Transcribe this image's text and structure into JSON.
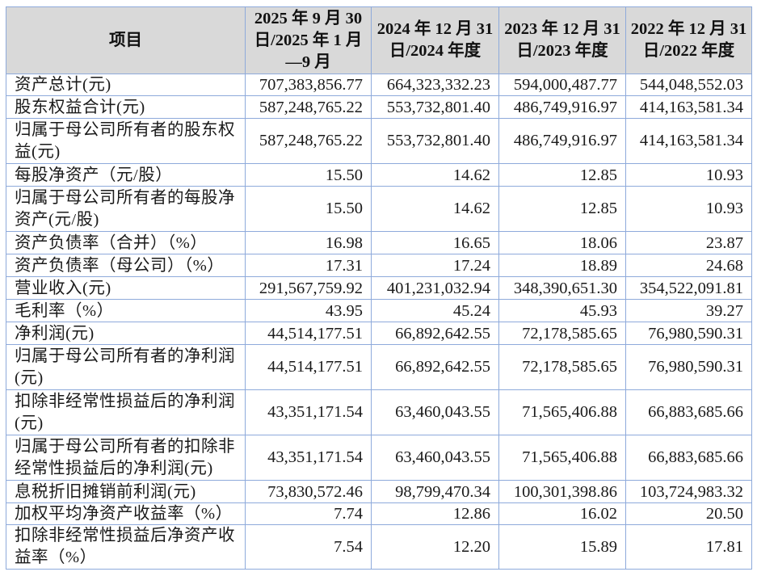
{
  "table": {
    "headers": [
      "项目",
      "2025 年 9 月 30 日/2025 年 1 月—9 月",
      "2024 年 12 月 31 日/2024 年度",
      "2023 年 12 月 31 日/2023 年度",
      "2022 年 12 月 31 日/2022 年度"
    ],
    "rows": [
      {
        "label": "资产总计(元)",
        "lines": 1,
        "values": [
          "707,383,856.77",
          "664,323,332.23",
          "594,000,487.77",
          "544,048,552.03"
        ]
      },
      {
        "label": "股东权益合计(元)",
        "lines": 1,
        "values": [
          "587,248,765.22",
          "553,732,801.40",
          "486,749,916.97",
          "414,163,581.34"
        ]
      },
      {
        "label": "归属于母公司所有者的股东权益(元)",
        "lines": 2,
        "values": [
          "587,248,765.22",
          "553,732,801.40",
          "486,749,916.97",
          "414,163,581.34"
        ]
      },
      {
        "label": "每股净资产（元/股）",
        "lines": 1,
        "values": [
          "15.50",
          "14.62",
          "12.85",
          "10.93"
        ]
      },
      {
        "label": "归属于母公司所有者的每股净资产(元/股)",
        "lines": 2,
        "values": [
          "15.50",
          "14.62",
          "12.85",
          "10.93"
        ]
      },
      {
        "label": "资产负债率（合并）（%）",
        "lines": 1,
        "values": [
          "16.98",
          "16.65",
          "18.06",
          "23.87"
        ]
      },
      {
        "label": "资产负债率（母公司）（%）",
        "lines": 1,
        "values": [
          "17.31",
          "17.24",
          "18.89",
          "24.68"
        ]
      },
      {
        "label": "营业收入(元)",
        "lines": 1,
        "values": [
          "291,567,759.92",
          "401,231,032.94",
          "348,390,651.30",
          "354,522,091.81"
        ]
      },
      {
        "label": "毛利率（%）",
        "lines": 1,
        "values": [
          "43.95",
          "45.24",
          "45.93",
          "39.27"
        ]
      },
      {
        "label": "净利润(元)",
        "lines": 1,
        "values": [
          "44,514,177.51",
          "66,892,642.55",
          "72,178,585.65",
          "76,980,590.31"
        ]
      },
      {
        "label": "归属于母公司所有者的净利润(元)",
        "lines": 2,
        "values": [
          "44,514,177.51",
          "66,892,642.55",
          "72,178,585.65",
          "76,980,590.31"
        ]
      },
      {
        "label": "扣除非经常性损益后的净利润(元)",
        "lines": 2,
        "values": [
          "43,351,171.54",
          "63,460,043.55",
          "71,565,406.88",
          "66,883,685.66"
        ]
      },
      {
        "label": "归属于母公司所有者的扣除非经常性损益后的净利润(元)",
        "lines": 2,
        "values": [
          "43,351,171.54",
          "63,460,043.55",
          "71,565,406.88",
          "66,883,685.66"
        ]
      },
      {
        "label": "息税折旧摊销前利润(元)",
        "lines": 1,
        "values": [
          "73,830,572.46",
          "98,799,470.34",
          "100,301,398.86",
          "103,724,983.32"
        ]
      },
      {
        "label": "加权平均净资产收益率（%）",
        "lines": 1,
        "values": [
          "7.74",
          "12.86",
          "16.02",
          "20.50"
        ]
      },
      {
        "label": "扣除非经常性损益后净资产收益率（%）",
        "lines": 2,
        "values": [
          "7.54",
          "12.20",
          "15.89",
          "17.81"
        ]
      }
    ]
  },
  "colors": {
    "header_bg": "#d9d9d9",
    "border": "#8eaadb",
    "text": "#1a1a1a"
  }
}
